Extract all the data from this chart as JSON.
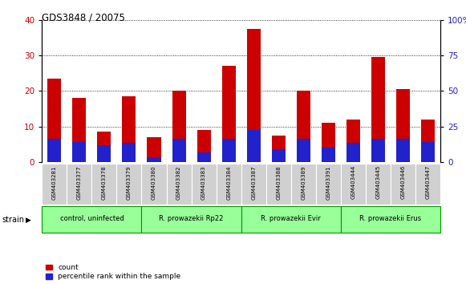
{
  "title": "GDS3848 / 20075",
  "samples": [
    "GSM403281",
    "GSM403377",
    "GSM403378",
    "GSM403379",
    "GSM403380",
    "GSM403382",
    "GSM403383",
    "GSM403384",
    "GSM403387",
    "GSM403388",
    "GSM403389",
    "GSM403391",
    "GSM403444",
    "GSM403445",
    "GSM403446",
    "GSM403447"
  ],
  "count": [
    23.5,
    18.0,
    8.5,
    18.5,
    7.0,
    20.0,
    9.0,
    27.0,
    37.5,
    7.5,
    20.0,
    11.0,
    12.0,
    29.5,
    20.5,
    12.0
  ],
  "percentile": [
    16.5,
    14.0,
    11.5,
    13.5,
    3.5,
    16.0,
    6.5,
    16.5,
    22.5,
    9.0,
    16.5,
    10.0,
    13.5,
    16.5,
    16.5,
    14.0
  ],
  "count_color": "#cc0000",
  "percentile_color": "#2222cc",
  "ylim_left": [
    0,
    40
  ],
  "ylim_right": [
    0,
    100
  ],
  "yticks_left": [
    0,
    10,
    20,
    30,
    40
  ],
  "yticks_right": [
    0,
    25,
    50,
    75,
    100
  ],
  "groups": [
    {
      "label": "control, uninfected",
      "start": 0,
      "end": 3
    },
    {
      "label": "R. prowazekii Rp22",
      "start": 4,
      "end": 7
    },
    {
      "label": "R. prowazekii Evir",
      "start": 8,
      "end": 11
    },
    {
      "label": "R. prowazekii Erus",
      "start": 12,
      "end": 15
    }
  ],
  "group_color": "#99ff99",
  "group_edge_color": "#009900",
  "tick_bg_color": "#d0d0d0",
  "bar_width": 0.55,
  "legend_count": "count",
  "legend_pct": "percentile rank within the sample",
  "fig_bg": "#ffffff"
}
